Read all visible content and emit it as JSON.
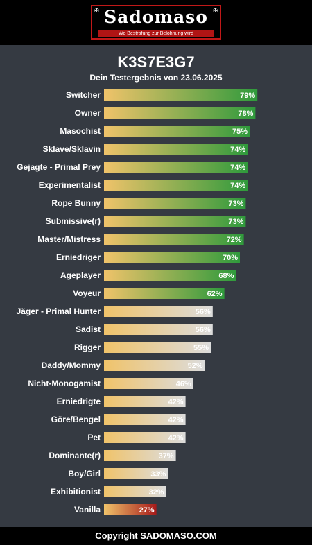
{
  "header": {
    "logo_text": "Sadomaso",
    "logo_tagline": "Wo Bestrafung zur Belohnung wird"
  },
  "colors": {
    "background": "#353a42",
    "bar_start": "#f0c36a",
    "bar_high_end": "#2f9a3c",
    "bar_mid_end": "#dcdcdc",
    "bar_low_end": "#a61a1a"
  },
  "chart_data": {
    "type": "bar",
    "orientation": "horizontal",
    "title": "K3S7E3G7",
    "subtitle": "Dein Testergebnis von 23.06.2025",
    "xlim": [
      0,
      100
    ],
    "grid": false,
    "value_suffix": "%",
    "categories": [
      "Switcher",
      "Owner",
      "Masochist",
      "Sklave/Sklavin",
      "Gejagte - Primal Prey",
      "Experimentalist",
      "Rope Bunny",
      "Submissive(r)",
      "Master/Mistress",
      "Erniedriger",
      "Ageplayer",
      "Voyeur",
      "Jäger - Primal Hunter",
      "Sadist",
      "Rigger",
      "Daddy/Mommy",
      "Nicht-Monogamist",
      "Erniedrigte",
      "Göre/Bengel",
      "Pet",
      "Dominante(r)",
      "Boy/Girl",
      "Exhibitionist",
      "Vanilla"
    ],
    "values": [
      79,
      78,
      75,
      74,
      74,
      74,
      73,
      73,
      72,
      70,
      68,
      62,
      56,
      56,
      55,
      52,
      46,
      42,
      42,
      42,
      37,
      33,
      32,
      27
    ],
    "tiers": [
      "high",
      "high",
      "high",
      "high",
      "high",
      "high",
      "high",
      "high",
      "high",
      "high",
      "high",
      "high",
      "mid",
      "mid",
      "mid",
      "mid",
      "mid",
      "mid",
      "mid",
      "mid",
      "mid",
      "mid",
      "mid",
      "low"
    ]
  },
  "footer": {
    "copyright": "Copyright SADOMASO.COM"
  }
}
